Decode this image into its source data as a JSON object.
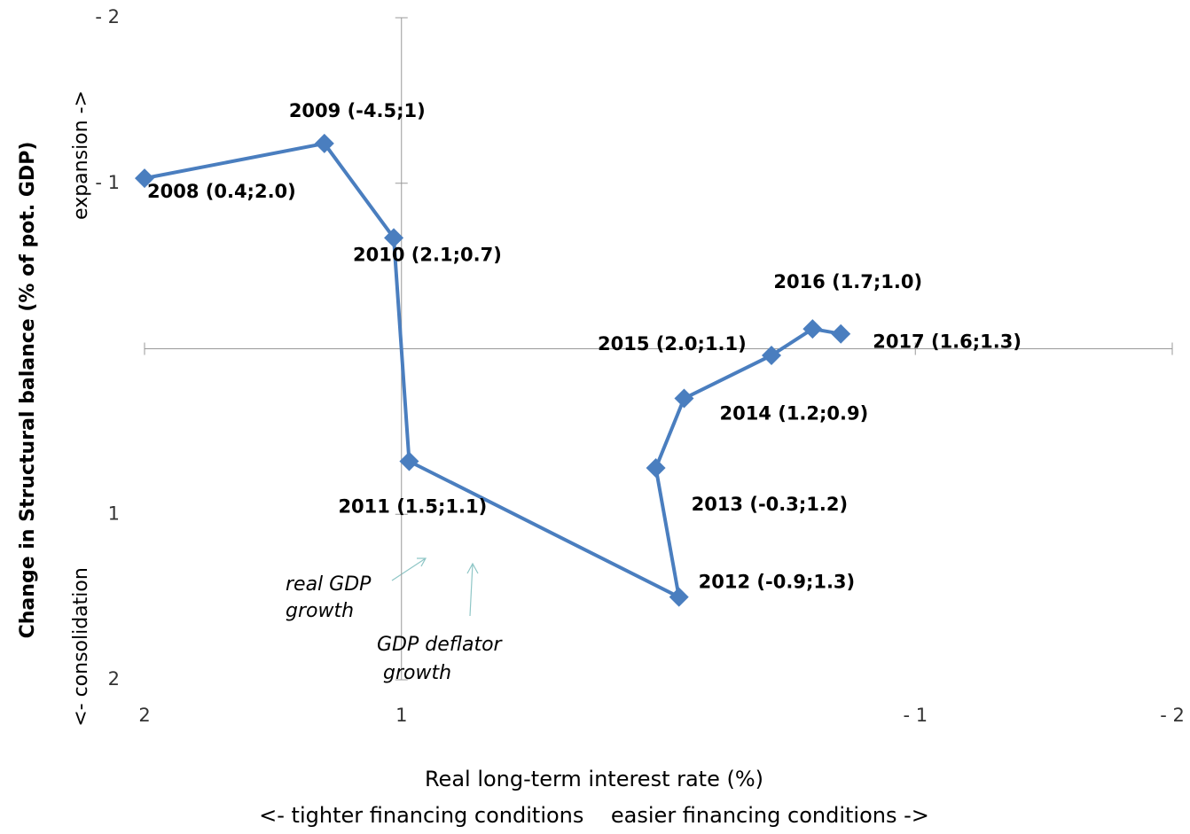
{
  "chart_data": {
    "type": "line",
    "x_title": "Real long-term interest rate (%)",
    "x_subtitle": "<- tighter financing conditions    easier financing conditions ->",
    "y_title": "Change in Structural balance (% of pot. GDP)",
    "y_label_top": "expansion ->",
    "y_label_bottom": "<- consolidation",
    "xlim": [
      2,
      -2
    ],
    "ylim": [
      2,
      -2
    ],
    "xticks": [
      2,
      1,
      {
        "value": -1,
        "label": "- 1"
      },
      {
        "value": -2,
        "label": "- 2"
      }
    ],
    "yticks": [
      {
        "value": -2,
        "label": "- 2"
      },
      {
        "value": -1,
        "label": "- 1"
      },
      1,
      2
    ],
    "x_axis_crosses_y": 0,
    "y_axis_crosses_x": 1,
    "series": [
      {
        "color": "#4a7ebf",
        "x": [
          2.0,
          1.3,
          1.03,
          0.97,
          -0.08,
          0.01,
          -0.1,
          -0.44,
          -0.6,
          -0.71
        ],
        "values": [
          -1.03,
          -1.24,
          -0.67,
          0.68,
          1.5,
          0.72,
          0.3,
          0.04,
          -0.12,
          -0.09
        ],
        "point_labels": [
          "2008 (0.4;2.0)",
          "2009 (-4.5;1)",
          "2010 (2.1;0.7)",
          "2011 (1.5;1.1)",
          "2012 (-0.9;1.3)",
          "2013 (-0.3;1.2)",
          "2014 (1.2;0.9)",
          "2015 (2.0;1.1)",
          "2016 (1.7;1.0)",
          "2017 (1.6;1.3)"
        ]
      }
    ],
    "annotations": [
      "real GDP",
      "growth",
      "GDP deflator",
      "growth"
    ]
  }
}
